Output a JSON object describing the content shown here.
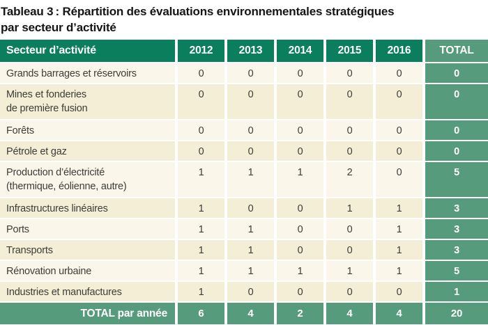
{
  "title": {
    "line1": "Tableau 3 : Répartition des évaluations environnementales stratégiques",
    "line2": "par secteur d’activité"
  },
  "colors": {
    "header_green": "#0b7e5d",
    "total_green": "#579b7d",
    "row_light": "#faf7ea",
    "row_dark": "#f3eed5",
    "text_dark": "#3d3c37"
  },
  "table": {
    "header": {
      "sector": "Secteur d’activité",
      "years": [
        "2012",
        "2013",
        "2014",
        "2015",
        "2016"
      ],
      "total": "TOTAL"
    },
    "rows": [
      {
        "sector_lines": [
          "Grands barrages et réservoirs"
        ],
        "values": [
          0,
          0,
          0,
          0,
          0
        ],
        "total": 0
      },
      {
        "sector_lines": [
          "Mines et fonderies",
          "de première fusion"
        ],
        "values": [
          0,
          0,
          0,
          0,
          0
        ],
        "total": 0
      },
      {
        "sector_lines": [
          "Forêts"
        ],
        "values": [
          0,
          0,
          0,
          0,
          0
        ],
        "total": 0
      },
      {
        "sector_lines": [
          "Pétrole et gaz"
        ],
        "values": [
          0,
          0,
          0,
          0,
          0
        ],
        "total": 0
      },
      {
        "sector_lines": [
          "Production d’électricité",
          "(thermique, éolienne, autre)"
        ],
        "values": [
          1,
          1,
          1,
          2,
          0
        ],
        "total": 5
      },
      {
        "sector_lines": [
          "Infrastructures linéaires"
        ],
        "values": [
          1,
          0,
          0,
          1,
          1
        ],
        "total": 3
      },
      {
        "sector_lines": [
          "Ports"
        ],
        "values": [
          1,
          1,
          0,
          0,
          1
        ],
        "total": 3
      },
      {
        "sector_lines": [
          "Transports"
        ],
        "values": [
          1,
          1,
          0,
          0,
          1
        ],
        "total": 3
      },
      {
        "sector_lines": [
          "Rénovation urbaine"
        ],
        "values": [
          1,
          1,
          1,
          1,
          1
        ],
        "total": 5
      },
      {
        "sector_lines": [
          "Industries et manufactures"
        ],
        "values": [
          1,
          0,
          0,
          0,
          0
        ],
        "total": 1
      }
    ],
    "footer": {
      "label": "TOTAL par année",
      "values": [
        6,
        4,
        2,
        4,
        4
      ],
      "total": 20
    }
  }
}
